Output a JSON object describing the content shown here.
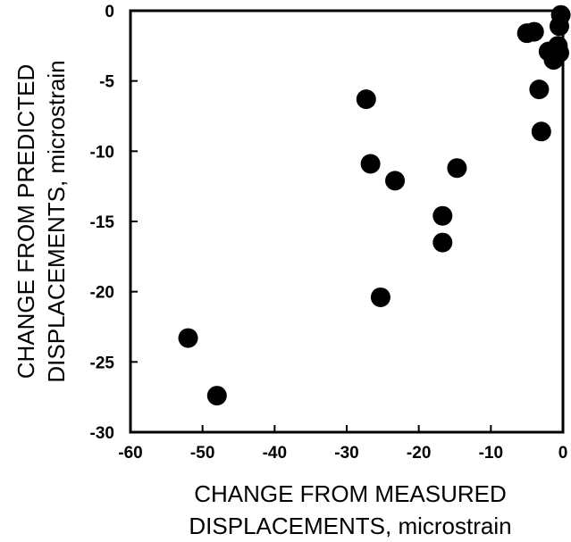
{
  "chart_data": {
    "type": "scatter",
    "xlabel": [
      "CHANGE FROM MEASURED",
      "DISPLACEMENTS, microstrain"
    ],
    "ylabel": [
      "CHANGE FROM PREDICTED",
      "DISPLACEMENTS, microstrain"
    ],
    "xlim": [
      -60,
      0
    ],
    "ylim": [
      -30,
      0
    ],
    "xticks": [
      -60,
      -50,
      -40,
      -30,
      -20,
      -10,
      0
    ],
    "yticks": [
      0,
      -5,
      -10,
      -15,
      -20,
      -25,
      -30
    ],
    "grid": false,
    "series": [
      {
        "points": [
          [
            -52,
            -23.3
          ],
          [
            -48,
            -27.4
          ],
          [
            -27.3,
            -6.3
          ],
          [
            -26.7,
            -10.9
          ],
          [
            -25.3,
            -20.4
          ],
          [
            -23.3,
            -12.1
          ],
          [
            -16.7,
            -14.6
          ],
          [
            -16.7,
            -16.5
          ],
          [
            -14.7,
            -11.2
          ],
          [
            -5,
            -1.6
          ],
          [
            -4,
            -1.5
          ],
          [
            -3.3,
            -5.6
          ],
          [
            -3,
            -8.6
          ],
          [
            -2,
            -2.9
          ],
          [
            -1.3,
            -3.5
          ],
          [
            -0.7,
            -2.5
          ],
          [
            -0.5,
            -1.1
          ],
          [
            -0.5,
            -3.0
          ],
          [
            -0.3,
            -0.3
          ]
        ]
      }
    ],
    "marker_color": "#000000"
  }
}
